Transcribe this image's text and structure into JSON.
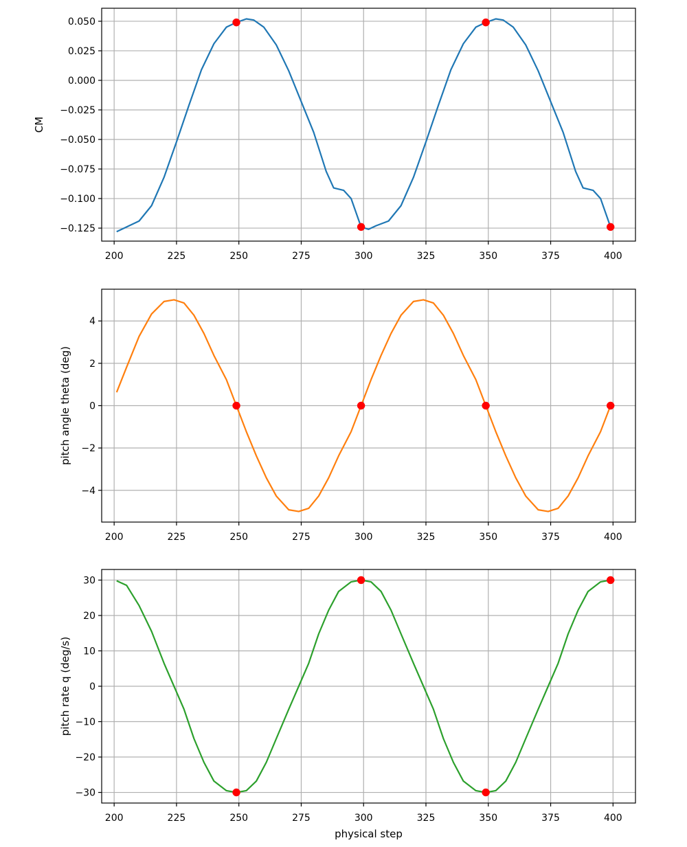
{
  "chart_data": [
    {
      "type": "line",
      "title": "",
      "xlabel": "",
      "ylabel": "CM",
      "xlim": [
        195,
        409
      ],
      "ylim": [
        -0.136,
        0.061
      ],
      "xticks": [
        200,
        225,
        250,
        275,
        300,
        325,
        350,
        375,
        400
      ],
      "yticks": [
        0.05,
        0.025,
        0.0,
        -0.025,
        -0.05,
        -0.075,
        -0.1,
        -0.125
      ],
      "ytick_labels": [
        "0.050",
        "0.025",
        "0.000",
        "−0.025",
        "−0.050",
        "−0.075",
        "−0.100",
        "−0.125"
      ],
      "grid": true,
      "line_color": "#1f77b4",
      "marker_color": "#ff0000",
      "series": [
        {
          "x": [
            201,
            205,
            210,
            215,
            220,
            225,
            230,
            235,
            240,
            245,
            249,
            253,
            256,
            260,
            265,
            270,
            275,
            280,
            285,
            288,
            292,
            295,
            299,
            302,
            305,
            310,
            315,
            320,
            325,
            330,
            335,
            340,
            345,
            349,
            353,
            356,
            360,
            365,
            370,
            375,
            380,
            385,
            388,
            392,
            395,
            399
          ],
          "y": [
            -0.128,
            -0.124,
            -0.119,
            -0.106,
            -0.082,
            -0.052,
            -0.021,
            0.009,
            0.031,
            0.045,
            0.049,
            0.052,
            0.051,
            0.045,
            0.03,
            0.008,
            -0.018,
            -0.044,
            -0.077,
            -0.091,
            -0.093,
            -0.1,
            -0.124,
            -0.126,
            -0.123,
            -0.119,
            -0.106,
            -0.082,
            -0.052,
            -0.021,
            0.009,
            0.031,
            0.045,
            0.049,
            0.052,
            0.051,
            0.045,
            0.03,
            0.008,
            -0.018,
            -0.044,
            -0.077,
            -0.091,
            -0.093,
            -0.1,
            -0.124
          ]
        }
      ],
      "markers": {
        "x": [
          249,
          299,
          349,
          399
        ],
        "y": [
          0.049,
          -0.124,
          0.049,
          -0.124
        ]
      }
    },
    {
      "type": "line",
      "title": "",
      "xlabel": "",
      "ylabel": "pitch angle theta (deg)",
      "xlim": [
        195,
        409
      ],
      "ylim": [
        -5.5,
        5.5
      ],
      "xticks": [
        200,
        225,
        250,
        275,
        300,
        325,
        350,
        375,
        400
      ],
      "yticks": [
        4,
        2,
        0,
        -2,
        -4
      ],
      "ytick_labels": [
        "4",
        "2",
        "0",
        "−2",
        "−4"
      ],
      "grid": true,
      "line_color": "#ff7f0e",
      "marker_color": "#ff0000",
      "series": [
        {
          "x": [
            201,
            205,
            210,
            215,
            220,
            224,
            228,
            232,
            236,
            240,
            245,
            249,
            253,
            257,
            261,
            265,
            270,
            274,
            278,
            282,
            286,
            290,
            295,
            299,
            303,
            307,
            311,
            315,
            320,
            324,
            328,
            332,
            336,
            340,
            345,
            349,
            353,
            357,
            361,
            365,
            370,
            374,
            378,
            382,
            386,
            390,
            395,
            399
          ],
          "y": [
            0.63,
            1.82,
            3.27,
            4.33,
            4.92,
            5.0,
            4.85,
            4.27,
            3.41,
            2.37,
            1.23,
            0,
            -1.23,
            -2.37,
            -3.41,
            -4.27,
            -4.92,
            -5.0,
            -4.85,
            -4.27,
            -3.41,
            -2.37,
            -1.23,
            0,
            1.23,
            2.37,
            3.41,
            4.27,
            4.92,
            5.0,
            4.85,
            4.27,
            3.41,
            2.37,
            1.23,
            0,
            -1.23,
            -2.37,
            -3.41,
            -4.27,
            -4.92,
            -5.0,
            -4.85,
            -4.27,
            -3.41,
            -2.37,
            -1.23,
            0
          ]
        }
      ],
      "markers": {
        "x": [
          249,
          299,
          349,
          399
        ],
        "y": [
          0,
          0,
          0,
          0
        ]
      }
    },
    {
      "type": "line",
      "title": "",
      "xlabel": "physical step",
      "ylabel": "pitch rate q (deg/s)",
      "xlim": [
        195,
        409
      ],
      "ylim": [
        -33,
        33
      ],
      "xticks": [
        200,
        225,
        250,
        275,
        300,
        325,
        350,
        375,
        400
      ],
      "yticks": [
        30,
        20,
        10,
        0,
        -10,
        -20,
        -30
      ],
      "ytick_labels": [
        "30",
        "20",
        "10",
        "0",
        "−10",
        "−20",
        "−30"
      ],
      "grid": true,
      "line_color": "#2ca02c",
      "marker_color": "#ff0000",
      "series": [
        {
          "x": [
            201,
            205,
            210,
            215,
            220,
            224,
            228,
            232,
            236,
            240,
            245,
            249,
            253,
            257,
            261,
            265,
            270,
            274,
            278,
            282,
            286,
            290,
            295,
            299,
            303,
            307,
            311,
            315,
            320,
            324,
            328,
            332,
            336,
            340,
            345,
            349,
            353,
            357,
            361,
            365,
            370,
            374,
            378,
            382,
            386,
            390,
            395,
            399
          ],
          "y": [
            29.8,
            28.5,
            22.8,
            15.5,
            6.5,
            0.0,
            -6.5,
            -14.8,
            -21.5,
            -26.8,
            -29.5,
            -30.0,
            -29.5,
            -26.8,
            -21.5,
            -14.8,
            -6.5,
            0.0,
            6.5,
            14.8,
            21.5,
            26.8,
            29.5,
            30.0,
            29.5,
            26.8,
            21.5,
            14.8,
            6.5,
            0.0,
            -6.5,
            -14.8,
            -21.5,
            -26.8,
            -29.5,
            -30.0,
            -29.5,
            -26.8,
            -21.5,
            -14.8,
            -6.5,
            0.0,
            6.5,
            14.8,
            21.5,
            26.8,
            29.5,
            30.0
          ]
        }
      ],
      "markers": {
        "x": [
          249,
          299,
          349,
          399
        ],
        "y": [
          -30,
          30,
          -30,
          30
        ]
      }
    }
  ]
}
